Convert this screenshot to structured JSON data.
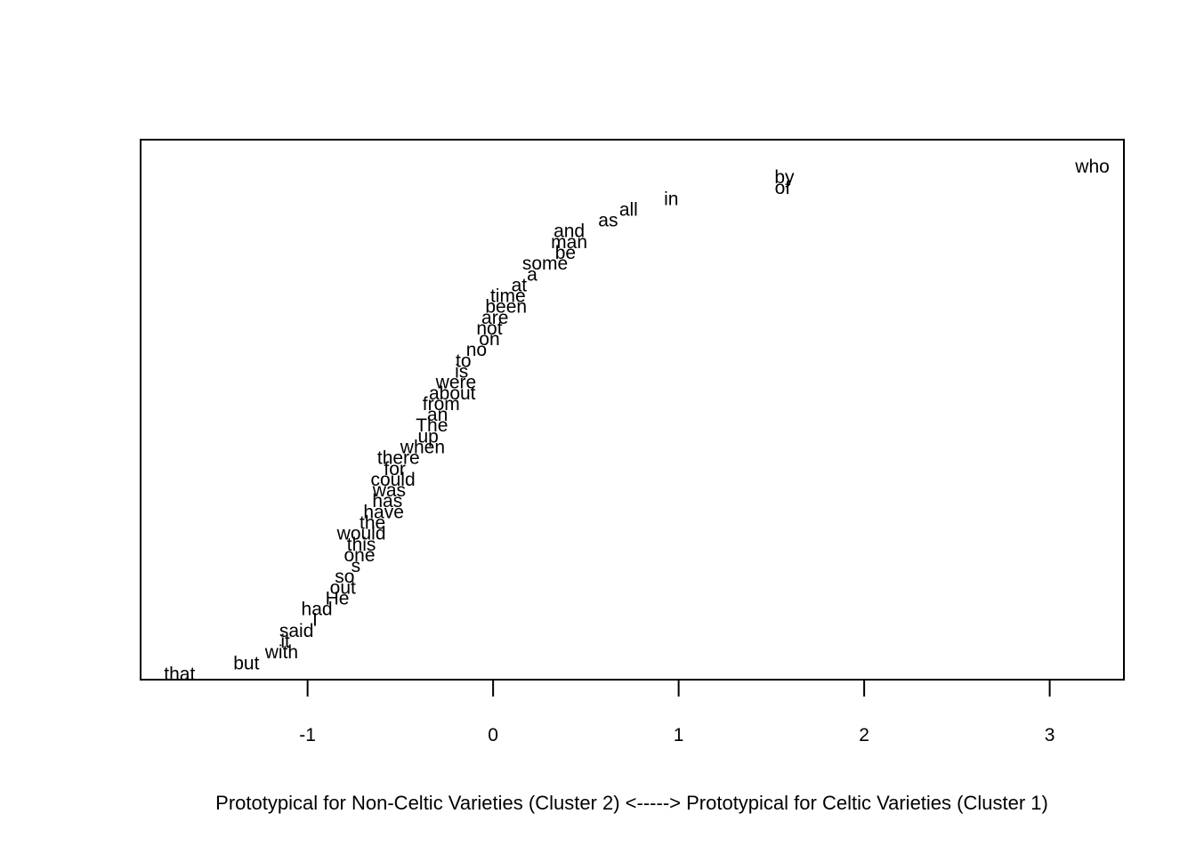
{
  "chart_data": {
    "type": "scatter",
    "title": "",
    "xlabel": "Prototypical for Non-Celtic Varieties (Cluster 2) <-----> Prototypical for Celtic Varieties (Cluster 1)",
    "ylabel": "",
    "xlim": [
      -1.9,
      3.4
    ],
    "ylim": [
      0.5,
      50.5
    ],
    "xticks": [
      -1,
      0,
      1,
      2,
      3
    ],
    "xtick_labels": [
      "-1",
      "0",
      "1",
      "2",
      "3"
    ],
    "y_axis_shown": false,
    "grid": false,
    "marker": "text",
    "points": [
      {
        "label": "that",
        "x": -1.69,
        "y": 1
      },
      {
        "label": "but",
        "x": -1.33,
        "y": 2
      },
      {
        "label": "with",
        "x": -1.14,
        "y": 3
      },
      {
        "label": "it",
        "x": -1.12,
        "y": 4
      },
      {
        "label": "said",
        "x": -1.06,
        "y": 5
      },
      {
        "label": "I",
        "x": -0.96,
        "y": 6
      },
      {
        "label": "had",
        "x": -0.95,
        "y": 7
      },
      {
        "label": "He",
        "x": -0.84,
        "y": 8
      },
      {
        "label": "out",
        "x": -0.81,
        "y": 9
      },
      {
        "label": "so",
        "x": -0.8,
        "y": 10
      },
      {
        "label": "s",
        "x": -0.74,
        "y": 11
      },
      {
        "label": "one",
        "x": -0.72,
        "y": 12
      },
      {
        "label": "this",
        "x": -0.71,
        "y": 13
      },
      {
        "label": "would",
        "x": -0.71,
        "y": 14
      },
      {
        "label": "the",
        "x": -0.65,
        "y": 15
      },
      {
        "label": "have",
        "x": -0.59,
        "y": 16
      },
      {
        "label": "has",
        "x": -0.57,
        "y": 17
      },
      {
        "label": "was",
        "x": -0.56,
        "y": 18
      },
      {
        "label": "could",
        "x": -0.54,
        "y": 19
      },
      {
        "label": "for",
        "x": -0.53,
        "y": 20
      },
      {
        "label": "there",
        "x": -0.51,
        "y": 21
      },
      {
        "label": "when",
        "x": -0.38,
        "y": 22
      },
      {
        "label": "up",
        "x": -0.35,
        "y": 23
      },
      {
        "label": "The",
        "x": -0.33,
        "y": 24
      },
      {
        "label": "an",
        "x": -0.3,
        "y": 25
      },
      {
        "label": "from",
        "x": -0.28,
        "y": 26
      },
      {
        "label": "about",
        "x": -0.22,
        "y": 27
      },
      {
        "label": "were",
        "x": -0.2,
        "y": 28
      },
      {
        "label": "is",
        "x": -0.17,
        "y": 29
      },
      {
        "label": "to",
        "x": -0.16,
        "y": 30
      },
      {
        "label": "no",
        "x": -0.09,
        "y": 31
      },
      {
        "label": "on",
        "x": -0.02,
        "y": 32
      },
      {
        "label": "not",
        "x": -0.02,
        "y": 33
      },
      {
        "label": "are",
        "x": 0.01,
        "y": 34
      },
      {
        "label": "been",
        "x": 0.07,
        "y": 35
      },
      {
        "label": "time",
        "x": 0.08,
        "y": 36
      },
      {
        "label": "at",
        "x": 0.14,
        "y": 37
      },
      {
        "label": "a",
        "x": 0.21,
        "y": 38
      },
      {
        "label": "some",
        "x": 0.28,
        "y": 39
      },
      {
        "label": "be",
        "x": 0.39,
        "y": 40
      },
      {
        "label": "man",
        "x": 0.41,
        "y": 41
      },
      {
        "label": "and",
        "x": 0.41,
        "y": 42
      },
      {
        "label": "as",
        "x": 0.62,
        "y": 43
      },
      {
        "label": "all",
        "x": 0.73,
        "y": 44
      },
      {
        "label": "in",
        "x": 0.96,
        "y": 45
      },
      {
        "label": "of",
        "x": 1.56,
        "y": 46
      },
      {
        "label": "by",
        "x": 1.57,
        "y": 47
      },
      {
        "label": "who",
        "x": 3.23,
        "y": 48
      }
    ]
  }
}
